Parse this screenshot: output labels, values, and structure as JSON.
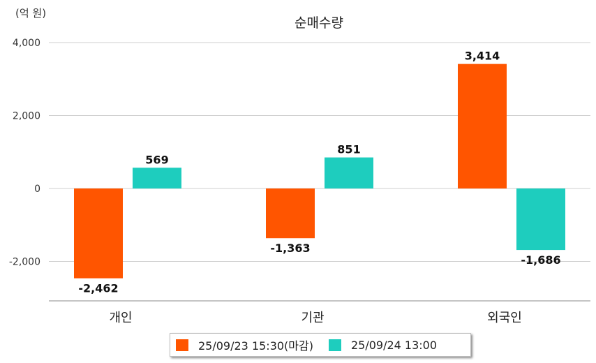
{
  "unit_label": "(억 원)",
  "chart_data": {
    "type": "bar",
    "title": "순매수량",
    "unit": "(억 원)",
    "categories": [
      "개인",
      "기관",
      "외국인"
    ],
    "series": [
      {
        "name": "25/09/23 15:30(마감)",
        "values": [
          -2462,
          -1363,
          3414
        ],
        "labels": [
          "-2,462",
          "-1,363",
          "3,414"
        ],
        "color": "#ff5500"
      },
      {
        "name": "25/09/24 13:00",
        "values": [
          569,
          851,
          -1686
        ],
        "labels": [
          "569",
          "851",
          "-1,686"
        ],
        "color": "#1ecdbe"
      }
    ],
    "yticks": [
      4000,
      2000,
      0,
      -2000
    ],
    "ytick_labels": [
      "4,000",
      "2,000",
      "0",
      "-2,000"
    ],
    "ylim": [
      -3100,
      4000
    ],
    "grid": true,
    "legend_position": "bottom"
  }
}
